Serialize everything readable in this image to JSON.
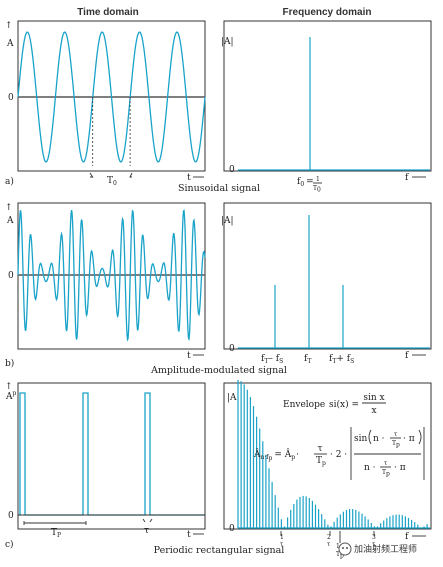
{
  "headers": {
    "time": "Time domain",
    "frequency": "Frequency domain"
  },
  "panel_a": {
    "letter": "a)",
    "caption": "Sinusoidal signal",
    "y_label": "A",
    "zero": "0",
    "t_axis": "t",
    "period": "T",
    "period_sub": "0",
    "amp_label": "|A|",
    "f_zero": "0",
    "f_axis": "f",
    "f0": "f",
    "f0_sub": "0",
    "eq": "=",
    "frac_num": "1",
    "frac_den": "T",
    "frac_den_sub": "0"
  },
  "panel_b": {
    "letter": "b)",
    "caption": "Amplitude-modulated signal",
    "y_label": "A",
    "zero": "0",
    "t_axis": "t",
    "amp_label": "|A|",
    "f_zero": "0",
    "f_axis": "f",
    "f_left": "f",
    "f_left_sub": "T",
    "f_left_op": "– f",
    "f_left_sub2": "S",
    "f_center": "f",
    "f_center_sub": "T",
    "f_right": "f",
    "f_right_sub": "T",
    "f_right_op": "+ f",
    "f_right_sub2": "S"
  },
  "panel_c": {
    "letter": "c)",
    "caption": "Periodic rectangular signal",
    "y_label": "A",
    "y_label_sub": "p",
    "zero": "0",
    "t_axis": "t",
    "tau": "τ",
    "period": "T",
    "period_sub": "P",
    "amp_label": "|A|",
    "f_zero": "0",
    "f_axis": "f",
    "envelope": "Envelope",
    "si_lhs": "si(x) =",
    "si_num": "sin x",
    "si_den": "x",
    "formula_lhs": "Â",
    "formula_lhs_sub": "n·f",
    "formula_lhs_sub2": "p",
    "formula_eq": "= Â",
    "formula_ap_sub": "p",
    "formula_dot": "·",
    "tau_num": "τ",
    "tp_den": "T",
    "tp_den_sub": "p",
    "formula_two": "· 2 ·",
    "sin_open": "sin",
    "n_dot": "n ·",
    "dot_pi": "· π",
    "den_pre": "n ·",
    "den_post": "· π",
    "xt1_num": "1",
    "xt1_den": "τ",
    "xt2_num": "2",
    "xt2_den": "τ",
    "xt3_num": "3",
    "xt3_den": "τ",
    "xtp_num": "1",
    "xtp_den": "T",
    "xtp_den_sub": "p"
  },
  "watermark": "加油射频工程师",
  "colors": {
    "signal": "#1aa3c9",
    "axis": "#333333"
  },
  "chart_data": [
    {
      "type": "line",
      "panel": "a-time",
      "series": [
        {
          "shape": "sine",
          "cycles": 5
        }
      ]
    },
    {
      "type": "bar",
      "panel": "a-freq",
      "spectral_lines": [
        {
          "at": "f0",
          "amplitude": 1.0
        }
      ]
    },
    {
      "type": "line",
      "panel": "b-time",
      "series": [
        {
          "shape": "amplitude-modulated sine"
        }
      ]
    },
    {
      "type": "bar",
      "panel": "b-freq",
      "spectral_lines": [
        {
          "at": "fT - fS",
          "amplitude": 0.45
        },
        {
          "at": "fT",
          "amplitude": 1.0
        },
        {
          "at": "fT + fS",
          "amplitude": 0.45
        }
      ]
    },
    {
      "type": "line",
      "panel": "c-time",
      "series": [
        {
          "shape": "periodic rectangular pulse",
          "pulses": 3
        }
      ]
    },
    {
      "type": "bar",
      "panel": "c-freq",
      "envelope": "si(x) = sin x / x",
      "lines": 60,
      "zeros_at": [
        "1/τ",
        "2/τ",
        "3/τ"
      ]
    }
  ]
}
